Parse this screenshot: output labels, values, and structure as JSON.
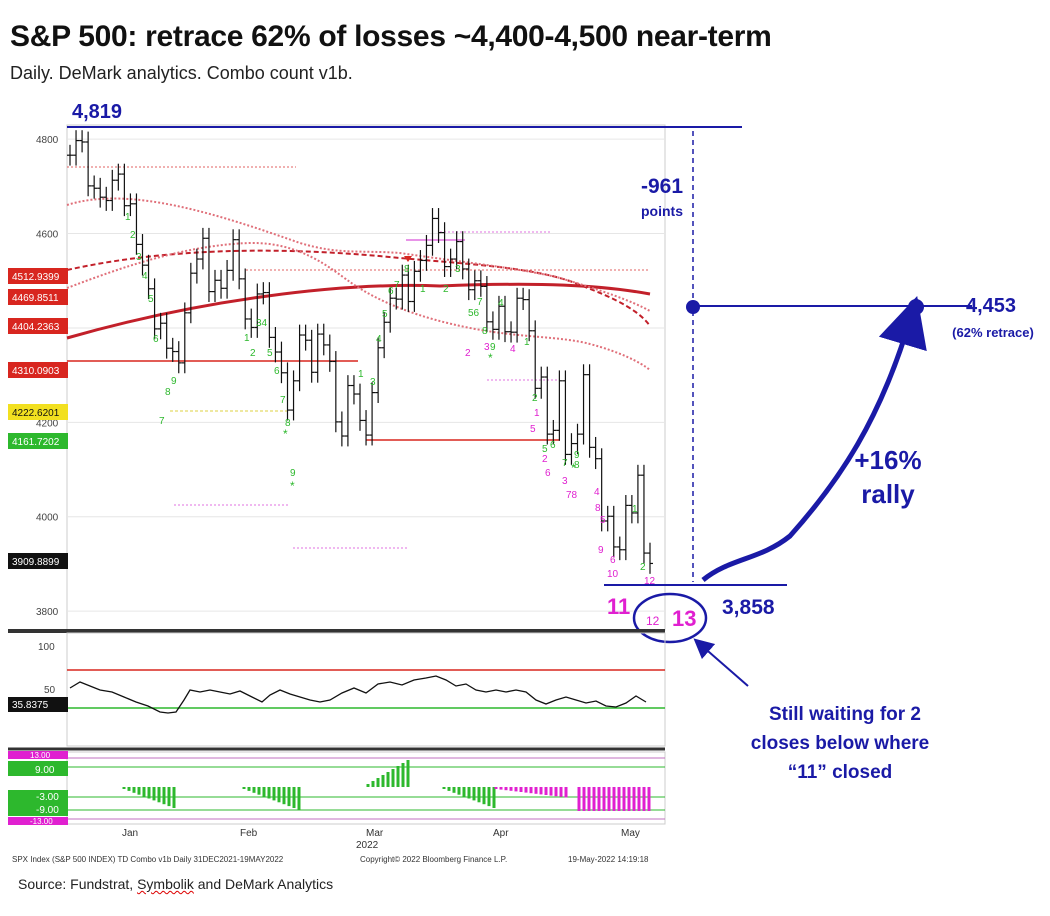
{
  "title": "S&P 500: retrace 62% of losses ~4,400-4,500 near-term",
  "subtitle": "Daily. DeMark analytics.  Combo count v1b.",
  "source": {
    "prefix": "Source: Fundstrat, ",
    "underlined": "Symbolik",
    "suffix": " and DeMark Analytics"
  },
  "footer": {
    "left": "SPX Index (S&P 500 INDEX) TD Combo v1b  Daily 31DEC2021-19MAY2022",
    "middle": "Copyright© 2022 Bloomberg Finance L.P.",
    "right": "19-May-2022 14:19:18"
  },
  "colors": {
    "annotation": "#1a1aa6",
    "magenta": "#e020d0",
    "green": "#2db82d",
    "red": "#d8261f",
    "price": "#111111"
  },
  "annotations": {
    "high_label": "4,819",
    "drop_value": "-961",
    "drop_unit": "points",
    "target_value": "4,453",
    "target_note": "(62% retrace)",
    "rally_pct": "+16%",
    "rally_word": "rally",
    "low_value": "3,858",
    "count_11": "11",
    "count_12": "12",
    "count_13": "13",
    "note_line1": "Still waiting for 2",
    "note_line2": "closes below where",
    "note_line3": "“11” closed"
  },
  "chart_data": [
    {
      "type": "line",
      "title": "",
      "x_ticks": [
        "Jan",
        "Feb",
        "Mar",
        "Apr",
        "May"
      ],
      "x_year": "2022",
      "y_ticks": [
        3800,
        4000,
        4200,
        4400,
        4600,
        4800
      ],
      "ylim": [
        3760,
        4830
      ],
      "price_series": {
        "name": "",
        "dates": [
          "2021-12-31",
          "2022-01-03",
          "2022-01-04",
          "2022-01-05",
          "2022-01-06",
          "2022-01-07",
          "2022-01-10",
          "2022-01-11",
          "2022-01-12",
          "2022-01-13",
          "2022-01-14",
          "2022-01-18",
          "2022-01-19",
          "2022-01-20",
          "2022-01-21",
          "2022-01-24",
          "2022-01-25",
          "2022-01-26",
          "2022-01-27",
          "2022-01-28",
          "2022-01-31",
          "2022-02-01",
          "2022-02-02",
          "2022-02-03",
          "2022-02-04",
          "2022-02-07",
          "2022-02-08",
          "2022-02-09",
          "2022-02-10",
          "2022-02-11",
          "2022-02-14",
          "2022-02-15",
          "2022-02-16",
          "2022-02-17",
          "2022-02-18",
          "2022-02-22",
          "2022-02-23",
          "2022-02-24",
          "2022-02-25",
          "2022-02-28",
          "2022-03-01",
          "2022-03-02",
          "2022-03-03",
          "2022-03-04",
          "2022-03-07",
          "2022-03-08",
          "2022-03-09",
          "2022-03-10",
          "2022-03-11",
          "2022-03-14",
          "2022-03-15",
          "2022-03-16",
          "2022-03-17",
          "2022-03-18",
          "2022-03-21",
          "2022-03-22",
          "2022-03-23",
          "2022-03-24",
          "2022-03-25",
          "2022-03-28",
          "2022-03-29",
          "2022-03-30",
          "2022-03-31",
          "2022-04-01",
          "2022-04-04",
          "2022-04-05",
          "2022-04-06",
          "2022-04-07",
          "2022-04-08",
          "2022-04-11",
          "2022-04-12",
          "2022-04-13",
          "2022-04-14",
          "2022-04-18",
          "2022-04-19",
          "2022-04-20",
          "2022-04-21",
          "2022-04-22",
          "2022-04-25",
          "2022-04-26",
          "2022-04-27",
          "2022-04-28",
          "2022-04-29",
          "2022-05-02",
          "2022-05-03",
          "2022-05-04",
          "2022-05-05",
          "2022-05-06",
          "2022-05-09",
          "2022-05-10",
          "2022-05-11",
          "2022-05-12",
          "2022-05-13",
          "2022-05-16",
          "2022-05-17",
          "2022-05-18",
          "2022-05-19"
        ],
        "close": [
          4766,
          4797,
          4794,
          4701,
          4696,
          4677,
          4670,
          4713,
          4726,
          4659,
          4663,
          4577,
          4533,
          4483,
          4398,
          4410,
          4357,
          4350,
          4326,
          4432,
          4516,
          4546,
          4590,
          4477,
          4501,
          4484,
          4522,
          4587,
          4504,
          4419,
          4401,
          4472,
          4475,
          4380,
          4349,
          4305,
          4226,
          4288,
          4385,
          4374,
          4306,
          4387,
          4364,
          4329,
          4201,
          4171,
          4278,
          4260,
          4204,
          4173,
          4263,
          4358,
          4412,
          4463,
          4461,
          4512,
          4456,
          4520,
          4543,
          4575,
          4632,
          4602,
          4530,
          4546,
          4583,
          4525,
          4481,
          4500,
          4488,
          4413,
          4397,
          4446,
          4392,
          4391,
          4463,
          4460,
          4394,
          4272,
          4296,
          4175,
          4183,
          4288,
          4132,
          4155,
          4175,
          4301,
          4147,
          4123,
          3991,
          4001,
          3936,
          3930,
          4024,
          4008,
          4088,
          3923,
          3901
        ]
      },
      "horizontal_levels": [
        4512.9399,
        4469.8511,
        4404.2363,
        4310.0903,
        4222.6201,
        4161.7202,
        3909.8899
      ],
      "reference_lines": {
        "high": 4819,
        "low": 3858,
        "target": 4453
      }
    },
    {
      "type": "line",
      "title": "",
      "y_ticks": [
        50,
        100
      ],
      "current_value": "35.8375",
      "upper_band": 70,
      "lower_band": 30
    },
    {
      "type": "bar",
      "title": "",
      "labels": [
        "13.00",
        "9.00",
        "-3.00",
        "-9.00",
        "-13.00"
      ]
    }
  ]
}
